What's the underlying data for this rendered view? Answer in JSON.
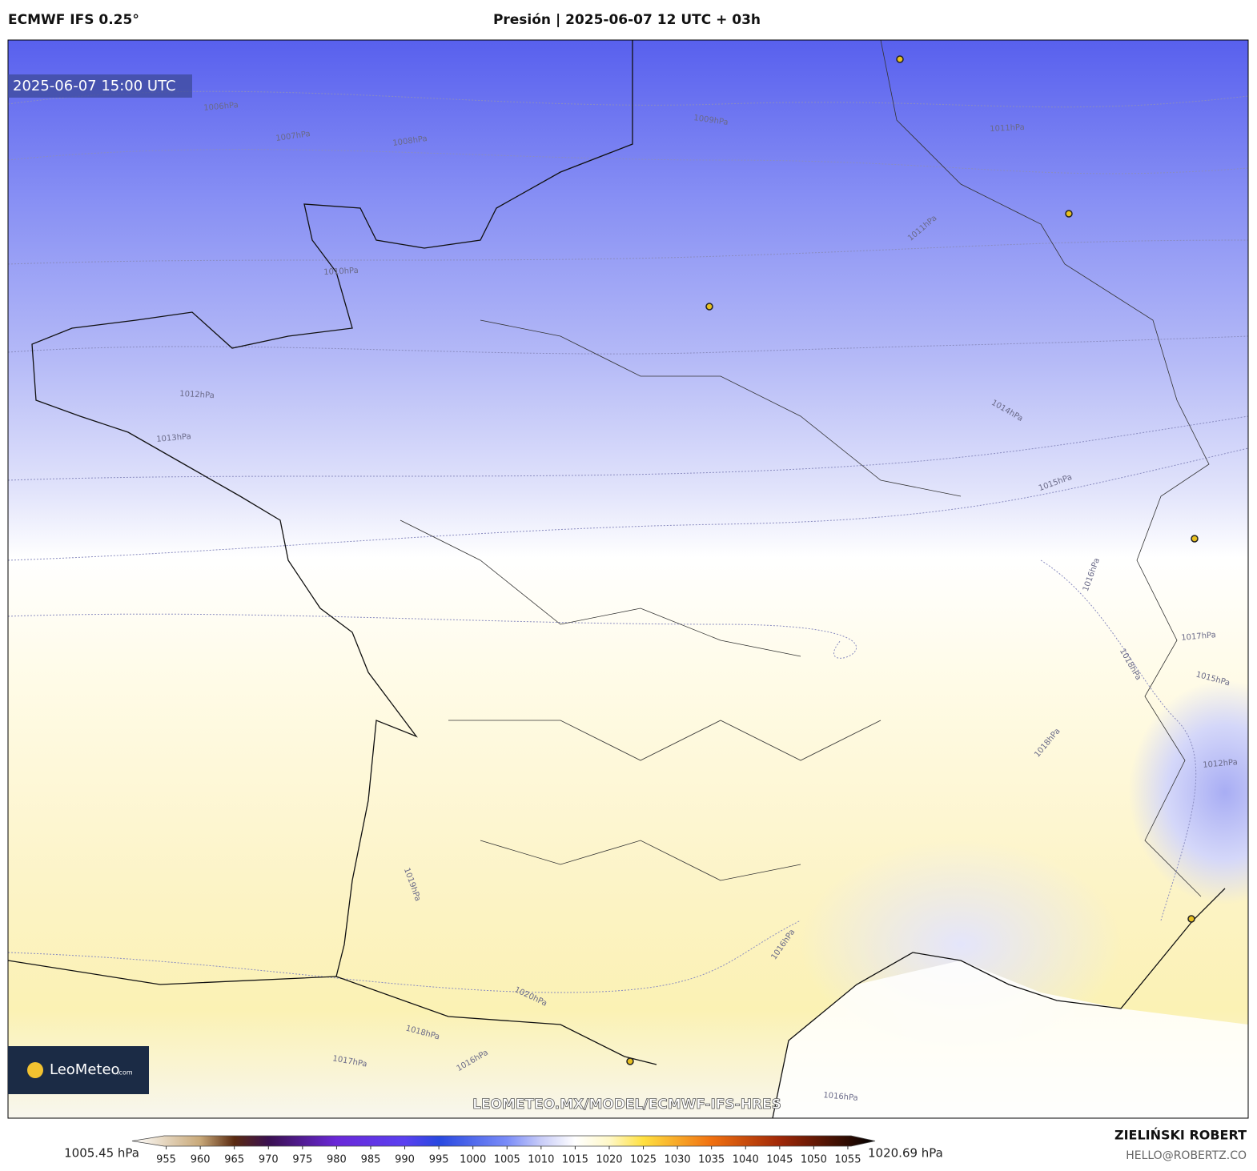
{
  "header": {
    "model": "ECMWF IFS 0.25°",
    "title": "Presión | 2025-06-07 12 UTC + 03h"
  },
  "map": {
    "valid_time": "2025-06-07 15:00 UTC",
    "isobar_labels": [
      "1006hPa",
      "1007hPa",
      "1008hPa",
      "1009hPa",
      "1010hPa",
      "1011hPa",
      "1011hPa",
      "1012hPa",
      "1013hPa",
      "1014hPa",
      "1015hPa",
      "1016hPa",
      "1017hPa",
      "1015hPa",
      "1018hPa",
      "1018hPa",
      "1012hPa",
      "1019hPa",
      "1020hPa",
      "1016hPa",
      "1017hPa",
      "1018hPa",
      "1016hPa",
      "1016hPa"
    ],
    "watermark": "LEOMETEO.MX/MODEL/ECMWF-IFS-HRES",
    "logo": {
      "name": "LeoMeteo",
      "suffix": ".com"
    }
  },
  "colorbar": {
    "min_label": "1005.45 hPa",
    "max_label": "1020.69 hPa",
    "range": [
      950,
      1059
    ],
    "ticks": [
      955,
      960,
      965,
      970,
      975,
      980,
      985,
      990,
      995,
      1000,
      1005,
      1010,
      1015,
      1020,
      1025,
      1030,
      1035,
      1040,
      1045,
      1050,
      1055
    ],
    "stops": [
      {
        "value": 950,
        "color": "#ffffff"
      },
      {
        "value": 960,
        "color": "#c8a878"
      },
      {
        "value": 965,
        "color": "#5a2a10"
      },
      {
        "value": 970,
        "color": "#3a1050"
      },
      {
        "value": 980,
        "color": "#6a28d8"
      },
      {
        "value": 990,
        "color": "#5a40f0"
      },
      {
        "value": 995,
        "color": "#2848e0"
      },
      {
        "value": 1005,
        "color": "#7a8cf8"
      },
      {
        "value": 1010,
        "color": "#c8ccf8"
      },
      {
        "value": 1015,
        "color": "#ffffff"
      },
      {
        "value": 1020,
        "color": "#fff8c8"
      },
      {
        "value": 1025,
        "color": "#ffe040"
      },
      {
        "value": 1035,
        "color": "#f07010"
      },
      {
        "value": 1045,
        "color": "#a02808"
      },
      {
        "value": 1059,
        "color": "#000000"
      }
    ]
  },
  "credits": {
    "author": "ZIELIŃSKI ROBERT",
    "email": "HELLO@ROBERTZ.CO"
  }
}
